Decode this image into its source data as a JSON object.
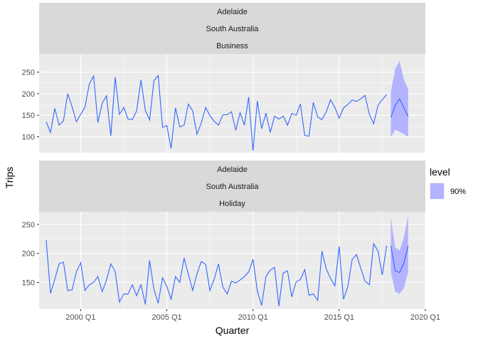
{
  "chart_data": {
    "type": "line",
    "xlabel": "Quarter",
    "ylabel": "Trips",
    "x_ticks": [
      "2000 Q1",
      "2005 Q1",
      "2010 Q1",
      "2015 Q1",
      "2020 Q1"
    ],
    "x_tick_years": [
      2000,
      2005,
      2010,
      2015,
      2020
    ],
    "xlim": [
      1997.59,
      2020.0
    ],
    "legend": {
      "title": "level",
      "entries": [
        {
          "label": "90%",
          "color": "#B3B3FF"
        }
      ],
      "position": "right"
    },
    "colors": {
      "line": "#3366FF",
      "band": "#B3B3FF",
      "panel": "#EBEBEB",
      "strip": "#D9D9D9",
      "grid": "#FFFFFF"
    },
    "panels": [
      {
        "strips": [
          "Adelaide",
          "South Australia",
          "Business"
        ],
        "ylim": [
          63,
          292
        ],
        "y_ticks": [
          100,
          150,
          200,
          250
        ],
        "start": "1998 Q1",
        "values": [
          135,
          110,
          166,
          127,
          137,
          200,
          170,
          135,
          152,
          169,
          222,
          241,
          133,
          178,
          195,
          102,
          238,
          152,
          168,
          141,
          140,
          160,
          232,
          161,
          139,
          230,
          242,
          122,
          126,
          73,
          167,
          123,
          127,
          176,
          160,
          106,
          132,
          168,
          149,
          136,
          127,
          151,
          151,
          158,
          115,
          156,
          127,
          192,
          68,
          183,
          119,
          155,
          110,
          148,
          141,
          148,
          127,
          154,
          150,
          176,
          103,
          101,
          180,
          146,
          140,
          158,
          186,
          168,
          143,
          167,
          175,
          185,
          182,
          188,
          196,
          152,
          130,
          173,
          186,
          198
        ],
        "forecast": {
          "start": "2018 Q1",
          "mean": [
            145,
            172,
            188,
            168,
            147
          ],
          "lower": [
            100,
            116,
            112,
            106,
            100
          ],
          "upper": [
            205,
            257,
            276,
            233,
            210
          ]
        }
      },
      {
        "strips": [
          "Adelaide",
          "South Australia",
          "Holiday"
        ],
        "ylim": [
          104,
          272
        ],
        "y_ticks": [
          150,
          200,
          250
        ],
        "start": "1998 Q1",
        "values": [
          223,
          131,
          155,
          182,
          185,
          136,
          137,
          168,
          184,
          136,
          146,
          150,
          160,
          134,
          154,
          182,
          169,
          116,
          130,
          130,
          146,
          127,
          146,
          112,
          188,
          138,
          114,
          158,
          143,
          121,
          160,
          150,
          192,
          164,
          136,
          165,
          186,
          181,
          136,
          156,
          182,
          142,
          130,
          152,
          149,
          154,
          160,
          168,
          190,
          135,
          110,
          160,
          171,
          176,
          109,
          166,
          170,
          125,
          151,
          155,
          172,
          128,
          130,
          119,
          204,
          173,
          157,
          144,
          212,
          121,
          143,
          189,
          198,
          175,
          152,
          146,
          217,
          204,
          163,
          213
        ],
        "forecast": {
          "start": "2018 Q1",
          "mean": [
            213,
            170,
            167,
            183,
            213
          ],
          "lower": [
            168,
            134,
            130,
            140,
            168
          ],
          "upper": [
            262,
            210,
            205,
            227,
            265
          ]
        }
      }
    ]
  }
}
